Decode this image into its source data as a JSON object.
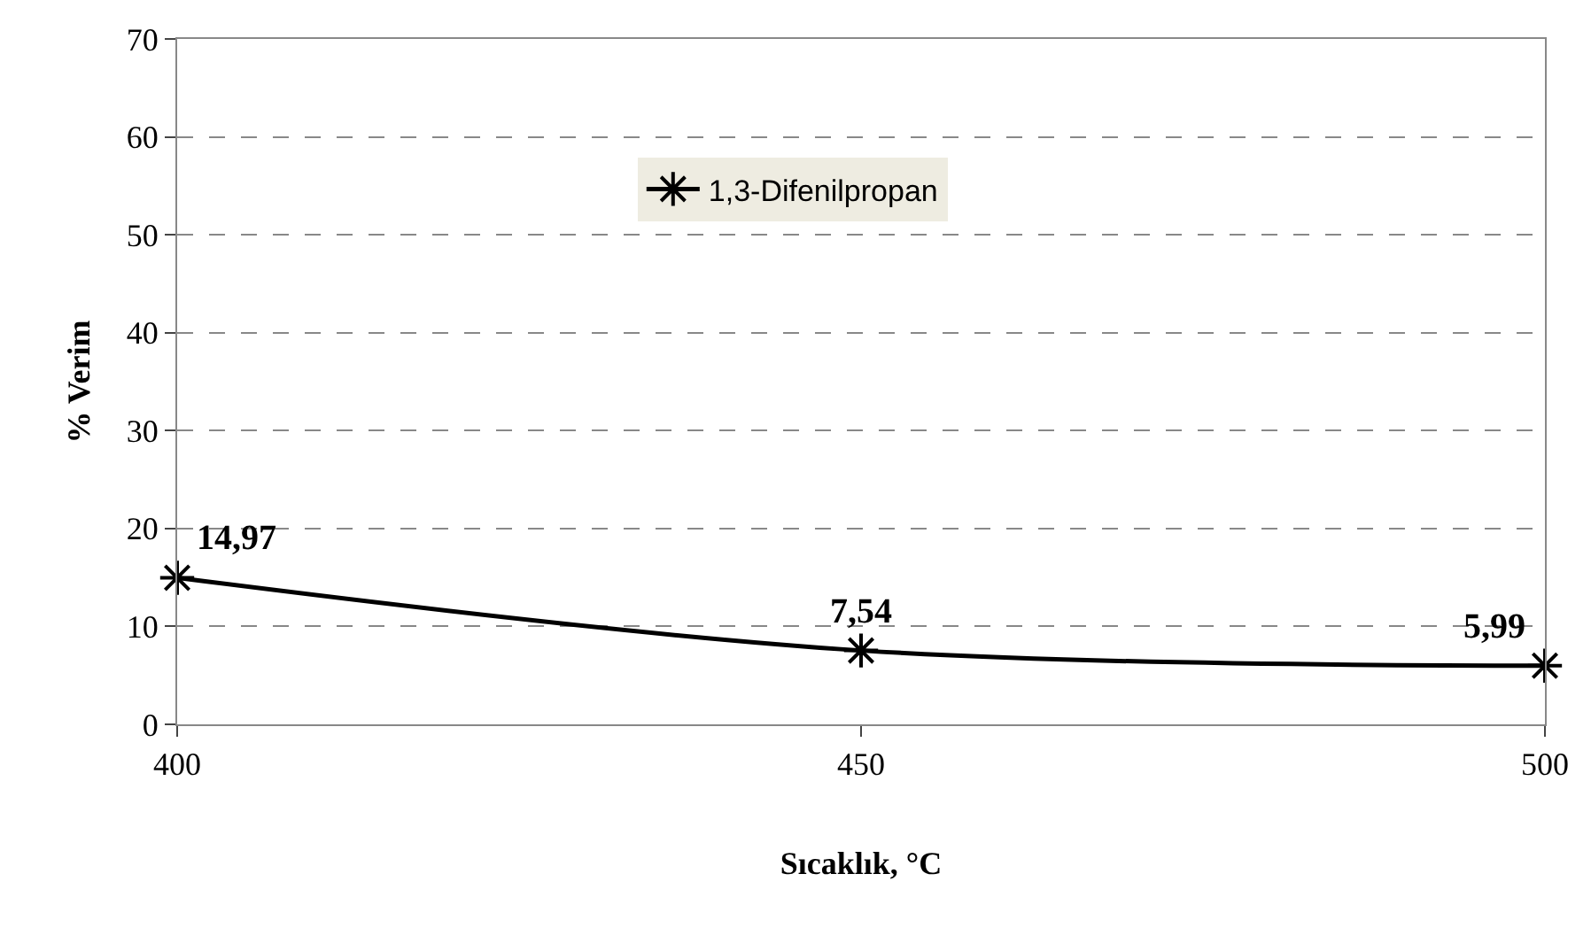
{
  "chart_data": {
    "type": "line",
    "xlabel": "Sıcaklık, °C",
    "ylabel": "% Verim",
    "x": [
      400,
      450,
      500
    ],
    "xlim": [
      400,
      500
    ],
    "xticks": [
      400,
      450,
      500
    ],
    "ylim": [
      0,
      70
    ],
    "yticks": [
      0,
      10,
      20,
      30,
      40,
      50,
      60,
      70
    ],
    "series": [
      {
        "name": "1,3-Difenilpropan",
        "color": "#000000",
        "values": [
          14.97,
          7.54,
          5.99
        ],
        "value_labels": [
          "14,97",
          "7,54",
          "5,99"
        ]
      }
    ],
    "grid": "y",
    "legend": "top",
    "marker": "cross",
    "line_style": "solid"
  }
}
